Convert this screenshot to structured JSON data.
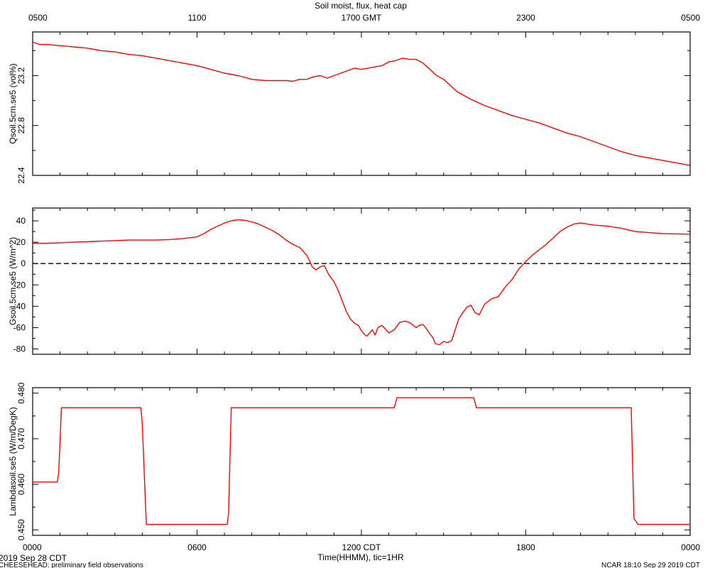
{
  "title": "Soil moist, flux, heat cap",
  "footer": {
    "left_date": "2019 Sep 28 CDT",
    "left_note": "CHEESEHEAD: preliminary field observations",
    "right": "NCAR 18:10 Sep 29 2019 CDT"
  },
  "x_axis": {
    "label": "Time(HHMM), tic=1HR",
    "range_hours": [
      0,
      24
    ],
    "top_ticks": [
      {
        "hour": 0,
        "label": "0500"
      },
      {
        "hour": 6,
        "label": "1100"
      },
      {
        "hour": 12,
        "label": "1700 GMT"
      },
      {
        "hour": 18,
        "label": "2300"
      },
      {
        "hour": 24,
        "label": "0500"
      }
    ],
    "bottom_ticks": [
      {
        "hour": 0,
        "label": "0000"
      },
      {
        "hour": 6,
        "label": "0600"
      },
      {
        "hour": 12,
        "label": "1200 CDT"
      },
      {
        "hour": 18,
        "label": "1800"
      },
      {
        "hour": 24,
        "label": "0000"
      }
    ]
  },
  "colors": {
    "series": "#ff0000",
    "axes": "#000000"
  },
  "chart_data": [
    {
      "type": "line",
      "ylabel": "Qsoil.5cm.se5 (vol%)",
      "ylim": [
        22.4,
        23.55
      ],
      "yticks": [
        22.4,
        22.8,
        23.2
      ],
      "ytick_labels": [
        "22.4",
        "22.8",
        "23.2"
      ],
      "series": [
        {
          "x": [
            0,
            0.25,
            0.5,
            1,
            1.5,
            2,
            2.5,
            3,
            3.5,
            4,
            4.5,
            5,
            5.5,
            6,
            6.5,
            7,
            7.5,
            8,
            8.5,
            9,
            9.25,
            9.5,
            9.75,
            10,
            10.25,
            10.5,
            10.75,
            11,
            11.25,
            11.5,
            11.75,
            12,
            12.25,
            12.5,
            12.75,
            13,
            13.25,
            13.5,
            13.75,
            14,
            14.25,
            14.5,
            14.75,
            15,
            15.25,
            15.5,
            16,
            16.5,
            17,
            17.5,
            18,
            18.5,
            19,
            19.5,
            20,
            20.5,
            21,
            21.5,
            22,
            22.5,
            23,
            23.5,
            24
          ],
          "values": [
            23.47,
            23.45,
            23.45,
            23.44,
            23.43,
            23.42,
            23.4,
            23.39,
            23.37,
            23.36,
            23.34,
            23.32,
            23.3,
            23.28,
            23.25,
            23.22,
            23.2,
            23.17,
            23.16,
            23.16,
            23.16,
            23.155,
            23.17,
            23.17,
            23.19,
            23.2,
            23.18,
            23.2,
            23.22,
            23.24,
            23.26,
            23.25,
            23.26,
            23.27,
            23.28,
            23.31,
            23.32,
            23.34,
            23.33,
            23.33,
            23.3,
            23.25,
            23.2,
            23.17,
            23.12,
            23.07,
            23.01,
            22.96,
            22.92,
            22.88,
            22.85,
            22.82,
            22.78,
            22.74,
            22.71,
            22.67,
            22.63,
            22.59,
            22.56,
            22.54,
            22.52,
            22.5,
            22.48
          ]
        }
      ]
    },
    {
      "type": "line",
      "ylabel": "Gsoil.5cm.se5 (W/m^2)",
      "ylim": [
        -85,
        52
      ],
      "yticks": [
        -80,
        -60,
        -40,
        -20,
        0,
        20,
        40
      ],
      "ytick_labels": [
        "-80",
        "-60",
        "-40",
        "-20",
        "0",
        "20",
        "40"
      ],
      "zero_line": true,
      "series": [
        {
          "x": [
            0,
            0.5,
            1,
            1.5,
            2,
            2.5,
            3,
            3.5,
            4,
            4.5,
            5,
            5.5,
            6,
            6.25,
            6.5,
            6.75,
            7,
            7.25,
            7.5,
            7.75,
            8,
            8.25,
            8.5,
            8.75,
            9,
            9.25,
            9.5,
            9.75,
            10,
            10.1,
            10.2,
            10.35,
            10.5,
            10.65,
            10.8,
            11,
            11.15,
            11.3,
            11.45,
            11.6,
            11.75,
            11.9,
            12,
            12.1,
            12.2,
            12.3,
            12.4,
            12.5,
            12.6,
            12.75,
            12.9,
            13,
            13.2,
            13.4,
            13.6,
            13.75,
            13.85,
            14,
            14.1,
            14.25,
            14.4,
            14.5,
            14.6,
            14.7,
            14.85,
            15,
            15.15,
            15.3,
            15.45,
            15.55,
            15.7,
            15.85,
            16,
            16.15,
            16.3,
            16.5,
            16.75,
            17,
            17.25,
            17.5,
            17.75,
            18,
            18.25,
            18.5,
            18.75,
            19,
            19.25,
            19.5,
            19.75,
            20,
            20.5,
            21,
            21.5,
            22,
            22.5,
            23,
            24
          ],
          "values": [
            19,
            19,
            19.5,
            20,
            20.5,
            21,
            21.5,
            22,
            22,
            22,
            22.5,
            23.5,
            25,
            28,
            32,
            35,
            38,
            40,
            41,
            40.5,
            39,
            37,
            34,
            31,
            27,
            22,
            18,
            15,
            8,
            3,
            -3,
            -6,
            -3,
            -2,
            -10,
            -17,
            -25,
            -35,
            -45,
            -52,
            -56,
            -58,
            -63,
            -66,
            -68,
            -65,
            -62,
            -67,
            -60,
            -58,
            -62,
            -65,
            -62,
            -55,
            -54,
            -55,
            -57,
            -60,
            -58,
            -57,
            -62,
            -66,
            -69,
            -75,
            -76,
            -73,
            -74,
            -72,
            -60,
            -52,
            -46,
            -41,
            -39,
            -46,
            -48,
            -38,
            -33,
            -31,
            -22,
            -15,
            -5,
            2,
            8,
            13,
            18,
            24,
            30,
            34,
            37,
            38,
            36,
            35,
            33,
            30,
            29,
            28,
            27.5
          ]
        }
      ]
    },
    {
      "type": "line",
      "ylabel": "Lambdasoil.se5 (W/m/DegK)",
      "ylim": [
        0.4488,
        0.4812
      ],
      "yticks": [
        0.45,
        0.46,
        0.47,
        0.48
      ],
      "ytick_labels": [
        "0.450",
        "0.460",
        "0.470",
        "0.480"
      ],
      "series": [
        {
          "x": [
            0,
            0.9,
            0.95,
            1.05,
            3.95,
            4.0,
            4.15,
            4.9,
            7.1,
            7.15,
            7.25,
            13.2,
            13.3,
            16.1,
            16.2,
            21.85,
            21.95,
            22.1,
            24
          ],
          "values": [
            0.4605,
            0.4605,
            0.4625,
            0.4768,
            0.4768,
            0.4735,
            0.4512,
            0.4512,
            0.4512,
            0.4535,
            0.4768,
            0.4768,
            0.479,
            0.479,
            0.4768,
            0.4768,
            0.4525,
            0.4512,
            0.4512
          ]
        }
      ]
    }
  ]
}
